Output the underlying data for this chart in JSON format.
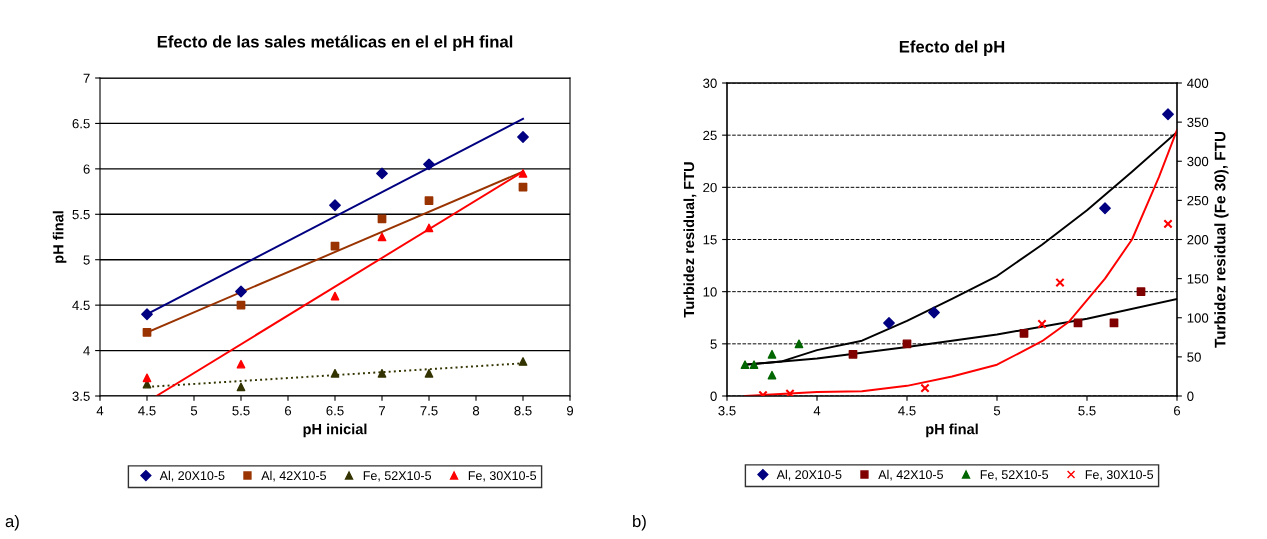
{
  "chart_data": [
    {
      "type": "scatter",
      "title": "Efecto de las sales metálicas en el el pH final",
      "xlabel": "pH inicial",
      "ylabel": "pH final",
      "xlim": [
        4,
        9
      ],
      "xticks": [
        4,
        4.5,
        5,
        5.5,
        6,
        6.5,
        7,
        7.5,
        8,
        8.5,
        9
      ],
      "ylim": [
        3.5,
        7
      ],
      "yticks": [
        3.5,
        4,
        4.5,
        5,
        5.5,
        6,
        6.5,
        7
      ],
      "grid": "y",
      "legend": "bottom",
      "annotations": [
        "a)"
      ],
      "series": [
        {
          "name": "Al, 20X10-5",
          "color": "#000080",
          "marker": "diamond",
          "x": [
            4.5,
            5.5,
            6.5,
            7,
            7.5,
            8.5
          ],
          "values": [
            4.4,
            4.65,
            5.6,
            5.95,
            6.05,
            6.35
          ]
        },
        {
          "name": "Al, 42X10-5",
          "color": "#993300",
          "marker": "square",
          "x": [
            4.5,
            5.5,
            6.5,
            7,
            7.5,
            8.5
          ],
          "values": [
            4.2,
            4.5,
            5.15,
            5.45,
            5.65,
            5.8
          ]
        },
        {
          "name": "Fe, 52X10-5",
          "color": "#333300",
          "marker": "triangle",
          "x": [
            4.5,
            5.5,
            6.5,
            7,
            7.5,
            8.5
          ],
          "values": [
            3.63,
            3.6,
            3.75,
            3.75,
            3.75,
            3.88
          ]
        },
        {
          "name": "Fe, 30X10-5",
          "color": "#ff0000",
          "marker": "triangle",
          "x": [
            4.5,
            5.5,
            6.5,
            7,
            7.5,
            8.5
          ],
          "values": [
            3.7,
            3.85,
            4.6,
            5.25,
            5.35,
            5.95
          ]
        },
        {
          "type": "line",
          "color": "#000080",
          "x": [
            4.5,
            8.5
          ],
          "values": [
            4.4,
            6.55
          ]
        },
        {
          "type": "line",
          "color": "#993300",
          "x": [
            4.5,
            8.5
          ],
          "values": [
            4.2,
            5.97
          ]
        },
        {
          "type": "line",
          "color": "#333300",
          "line_style": "dotted",
          "x": [
            4.5,
            8.5
          ],
          "values": [
            3.6,
            3.86
          ]
        },
        {
          "type": "line",
          "color": "#ff0000",
          "x": [
            4.6,
            8.5
          ],
          "values": [
            3.5,
            5.97
          ]
        }
      ]
    },
    {
      "type": "scatter",
      "title": "Efecto del pH",
      "xlabel": "pH final",
      "ylabel": "Turbidez residual, FTU",
      "y2label": "Turbidez residual (Fe 30), FTU",
      "xlim": [
        3.5,
        6
      ],
      "xticks": [
        3.5,
        4,
        4.5,
        5,
        5.5,
        6
      ],
      "ylim": [
        0,
        30
      ],
      "yticks": [
        0,
        5,
        10,
        15,
        20,
        25,
        30
      ],
      "y2lim": [
        0,
        400
      ],
      "y2ticks": [
        0,
        50,
        100,
        150,
        200,
        250,
        300,
        350,
        400
      ],
      "grid": "y",
      "legend": "bottom",
      "annotations": [
        "b)"
      ],
      "series": [
        {
          "name": "Al, 20X10-5",
          "color": "#000080",
          "marker": "diamond",
          "x": [
            4.4,
            4.65,
            5.6,
            5.95
          ],
          "values": [
            7,
            8,
            18,
            27
          ]
        },
        {
          "name": "Al, 42X10-5",
          "color": "#800000",
          "marker": "square",
          "x": [
            4.2,
            4.5,
            5.15,
            5.45,
            5.65,
            5.8
          ],
          "values": [
            4,
            5,
            6,
            7,
            7,
            10
          ]
        },
        {
          "name": "Fe, 52X10-5",
          "color": "#006600",
          "marker": "triangle",
          "x": [
            3.6,
            3.65,
            3.75,
            3.75,
            3.9
          ],
          "values": [
            3,
            3,
            4,
            2,
            5
          ]
        },
        {
          "name": "Fe, 30X10-5",
          "color": "#ff0000",
          "marker": "cross",
          "axis": "y2",
          "x": [
            3.7,
            3.85,
            4.6,
            5.25,
            5.35,
            5.95
          ],
          "values": [
            1,
            3,
            10,
            92,
            145,
            220
          ]
        },
        {
          "type": "line",
          "color": "#000000",
          "x": [
            3.6,
            3.8,
            4.0,
            4.25,
            4.5,
            4.75,
            5.0,
            5.25,
            5.5,
            5.75,
            6.0
          ],
          "values": [
            3,
            3.3,
            4.4,
            5.3,
            7.2,
            9.3,
            11.5,
            14.5,
            17.8,
            21.5,
            25.3
          ]
        },
        {
          "type": "line",
          "color": "#000000",
          "x": [
            3.6,
            4.0,
            4.5,
            5.0,
            5.5,
            6.0
          ],
          "values": [
            3,
            3.6,
            4.7,
            5.9,
            7.4,
            9.3
          ]
        },
        {
          "type": "line",
          "color": "#ff0000",
          "axis": "y2",
          "x": [
            3.6,
            4.0,
            4.25,
            4.5,
            4.75,
            5.0,
            5.25,
            5.4,
            5.6,
            5.75,
            5.9,
            6.0
          ],
          "values": [
            0,
            5,
            6,
            13,
            25,
            40,
            70,
            95,
            150,
            200,
            280,
            340
          ]
        }
      ]
    }
  ]
}
